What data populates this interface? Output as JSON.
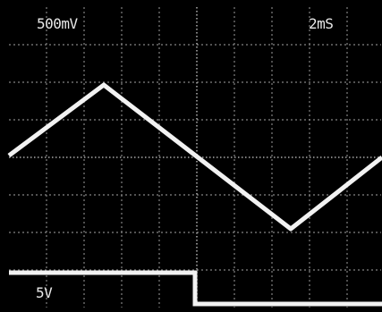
{
  "display": {
    "ch1_volts_per_div": "500mV",
    "time_per_div": "2mS",
    "ch2_volts_per_div": "5V"
  },
  "colors": {
    "background": "#000000",
    "trace": "#f2f2f2",
    "graticule": "#9a9a9a"
  },
  "traces": {
    "ch1_waveform": "triangle",
    "ch2_waveform": "square",
    "ch2_state_before_center": "high",
    "ch2_state_after_center": "low"
  },
  "graticule": {
    "columns": 10,
    "rows": 8
  }
}
